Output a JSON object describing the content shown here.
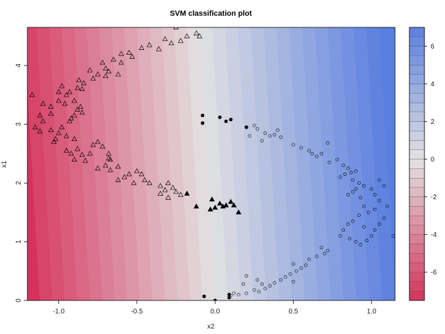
{
  "chart_data": {
    "type": "scatter",
    "title": "SVM classification plot",
    "xlabel": "x2",
    "ylabel": "x1",
    "xlim": [
      -1.2,
      1.15
    ],
    "ylim": [
      0,
      4.65
    ],
    "x_ticks": [
      "-1.0",
      "-0.5",
      "0.0",
      "0.5",
      "1.0"
    ],
    "y_ticks": [
      "0",
      "1",
      "2",
      "3",
      "4"
    ],
    "decision_surface": {
      "levels": [
        -7,
        -6.5,
        -6,
        -5.5,
        -5,
        -4.5,
        -4,
        -3.5,
        -3,
        -2.5,
        -2,
        -1.5,
        -1,
        -0.5,
        0,
        0.5,
        1,
        1.5,
        2,
        2.5,
        3,
        3.5,
        4,
        4.5,
        5,
        5.5,
        6,
        6.5,
        7
      ],
      "zero_line": [
        [
          0.0,
          0.0
        ],
        [
          -0.1,
          4.65
        ]
      ],
      "range": [
        -7.5,
        7
      ]
    },
    "colorbar": {
      "ticks": [
        "-6",
        "-4",
        "-2",
        "0",
        "2",
        "4",
        "6"
      ],
      "range": [
        -7.5,
        7
      ],
      "low_color": "#d6335c",
      "mid_color": "#e2e2e2",
      "high_color": "#5b7fe0"
    },
    "series": [
      {
        "marker": "triangle",
        "support_vector": false,
        "points": [
          [
            -0.25,
            4.65
          ],
          [
            -0.18,
            4.5
          ],
          [
            -0.12,
            4.55
          ],
          [
            -0.1,
            4.5
          ],
          [
            -0.32,
            4.45
          ],
          [
            -0.22,
            4.42
          ],
          [
            -0.28,
            4.38
          ],
          [
            -0.42,
            4.35
          ],
          [
            -0.36,
            4.28
          ],
          [
            -0.47,
            4.3
          ],
          [
            -0.55,
            4.22
          ],
          [
            -0.6,
            4.2
          ],
          [
            -0.53,
            4.15
          ],
          [
            -0.6,
            4.05
          ],
          [
            -0.65,
            4.1
          ],
          [
            -0.72,
            4.05
          ],
          [
            -0.7,
            3.95
          ],
          [
            -0.75,
            3.85
          ],
          [
            -0.8,
            3.92
          ],
          [
            -0.68,
            3.9
          ],
          [
            -0.62,
            3.85
          ],
          [
            -0.7,
            3.82
          ],
          [
            -0.78,
            3.78
          ],
          [
            -0.87,
            3.75
          ],
          [
            -0.85,
            3.6
          ],
          [
            -0.93,
            3.55
          ],
          [
            -0.98,
            3.65
          ],
          [
            -1.0,
            3.55
          ],
          [
            -0.95,
            3.5
          ],
          [
            -0.88,
            3.62
          ],
          [
            -0.84,
            3.7
          ],
          [
            -0.9,
            3.4
          ],
          [
            -0.96,
            3.35
          ],
          [
            -1.0,
            3.4
          ],
          [
            -1.05,
            3.3
          ],
          [
            -1.1,
            3.35
          ],
          [
            -1.17,
            3.5
          ],
          [
            -0.85,
            3.2
          ],
          [
            -0.9,
            3.15
          ],
          [
            -0.92,
            3.1
          ],
          [
            -0.88,
            3.25
          ],
          [
            -1.05,
            3.18
          ],
          [
            -1.12,
            3.15
          ],
          [
            -1.1,
            3.05
          ],
          [
            -1.15,
            2.95
          ],
          [
            -1.12,
            2.88
          ],
          [
            -1.05,
            2.9
          ],
          [
            -0.98,
            2.95
          ],
          [
            -1.0,
            2.85
          ],
          [
            -0.95,
            2.8
          ],
          [
            -0.9,
            2.75
          ],
          [
            -1.02,
            2.75
          ],
          [
            -1.03,
            2.7
          ],
          [
            -0.93,
            3.05
          ],
          [
            -0.86,
            3.3
          ],
          [
            -0.75,
            2.7
          ],
          [
            -0.72,
            2.62
          ],
          [
            -0.78,
            2.65
          ],
          [
            -0.88,
            2.58
          ],
          [
            -0.85,
            2.48
          ],
          [
            -0.8,
            2.5
          ],
          [
            -0.83,
            2.38
          ],
          [
            -0.9,
            2.4
          ],
          [
            -0.92,
            2.5
          ],
          [
            -0.95,
            2.55
          ],
          [
            -0.68,
            2.5
          ],
          [
            -0.67,
            2.4
          ],
          [
            -0.7,
            2.3
          ],
          [
            -0.75,
            2.25
          ],
          [
            -0.67,
            2.22
          ],
          [
            -0.62,
            2.28
          ],
          [
            -0.55,
            2.15
          ],
          [
            -0.62,
            2.05
          ],
          [
            -0.58,
            2.1
          ],
          [
            -0.5,
            2.2
          ],
          [
            -0.45,
            2.05
          ],
          [
            -0.47,
            2.15
          ],
          [
            -0.52,
            2.0
          ],
          [
            -0.42,
            2.0
          ],
          [
            -0.35,
            1.95
          ],
          [
            -0.3,
            2.0
          ],
          [
            -0.32,
            1.88
          ],
          [
            -0.35,
            1.82
          ],
          [
            -0.3,
            1.75
          ],
          [
            -0.25,
            1.85
          ],
          [
            -0.22,
            1.8
          ],
          [
            -0.27,
            1.92
          ],
          [
            -0.68,
            2.42
          ]
        ]
      },
      {
        "marker": "triangle",
        "support_vector": true,
        "points": [
          [
            -0.18,
            1.82
          ],
          [
            -0.12,
            1.6
          ],
          [
            -0.02,
            1.72
          ],
          [
            0.0,
            1.58
          ],
          [
            -0.03,
            1.55
          ],
          [
            0.05,
            1.6
          ],
          [
            0.07,
            1.62
          ],
          [
            0.03,
            1.65
          ],
          [
            0.1,
            1.68
          ],
          [
            0.12,
            1.62
          ],
          [
            0.15,
            1.5
          ]
        ]
      },
      {
        "marker": "circle",
        "support_vector": true,
        "points": [
          [
            -0.08,
            3.15
          ],
          [
            -0.08,
            3.02
          ],
          [
            0.03,
            3.12
          ],
          [
            0.07,
            3.05
          ],
          [
            0.1,
            3.08
          ],
          [
            0.2,
            2.95
          ],
          [
            -0.07,
            0.07
          ],
          [
            0.0,
            0.0
          ],
          [
            0.09,
            0.05
          ],
          [
            0.09,
            0.1
          ]
        ]
      },
      {
        "marker": "circle",
        "support_vector": false,
        "points": [
          [
            0.25,
            2.98
          ],
          [
            0.27,
            2.92
          ],
          [
            0.32,
            2.85
          ],
          [
            0.35,
            2.8
          ],
          [
            0.3,
            2.72
          ],
          [
            0.38,
            2.82
          ],
          [
            0.4,
            2.9
          ],
          [
            0.42,
            2.78
          ],
          [
            0.22,
            2.8
          ],
          [
            0.5,
            2.65
          ],
          [
            0.55,
            2.6
          ],
          [
            0.6,
            2.55
          ],
          [
            0.62,
            2.5
          ],
          [
            0.65,
            2.45
          ],
          [
            0.68,
            2.5
          ],
          [
            0.72,
            2.68
          ],
          [
            0.73,
            2.35
          ],
          [
            0.78,
            2.4
          ],
          [
            0.82,
            2.3
          ],
          [
            0.85,
            2.25
          ],
          [
            0.87,
            2.18
          ],
          [
            0.9,
            2.2
          ],
          [
            0.83,
            2.15
          ],
          [
            0.88,
            2.05
          ],
          [
            0.8,
            2.1
          ],
          [
            0.92,
            2.0
          ],
          [
            0.95,
            1.95
          ],
          [
            0.9,
            1.9
          ],
          [
            0.88,
            1.85
          ],
          [
            0.85,
            1.8
          ],
          [
            0.93,
            1.75
          ],
          [
            1.0,
            1.9
          ],
          [
            1.02,
            1.8
          ],
          [
            1.05,
            2.05
          ],
          [
            1.08,
            1.95
          ],
          [
            1.05,
            1.7
          ],
          [
            1.1,
            1.6
          ],
          [
            1.02,
            1.55
          ],
          [
            0.98,
            1.5
          ],
          [
            0.95,
            1.6
          ],
          [
            0.92,
            1.45
          ],
          [
            0.88,
            1.35
          ],
          [
            0.85,
            1.3
          ],
          [
            0.82,
            1.2
          ],
          [
            0.8,
            1.1
          ],
          [
            0.86,
            1.05
          ],
          [
            0.9,
            1.0
          ],
          [
            0.93,
            0.95
          ],
          [
            0.97,
            1.02
          ],
          [
            1.0,
            1.1
          ],
          [
            1.02,
            1.2
          ],
          [
            1.05,
            1.3
          ],
          [
            1.08,
            1.4
          ],
          [
            0.95,
            1.25
          ],
          [
            1.14,
            1.1
          ],
          [
            0.68,
            0.9
          ],
          [
            0.7,
            0.8
          ],
          [
            0.72,
            0.85
          ],
          [
            0.65,
            0.75
          ],
          [
            0.6,
            0.7
          ],
          [
            0.58,
            0.6
          ],
          [
            0.55,
            0.55
          ],
          [
            0.5,
            0.62
          ],
          [
            0.52,
            0.5
          ],
          [
            0.48,
            0.45
          ],
          [
            0.45,
            0.4
          ],
          [
            0.5,
            0.32
          ],
          [
            0.42,
            0.35
          ],
          [
            0.38,
            0.3
          ],
          [
            0.35,
            0.25
          ],
          [
            0.3,
            0.28
          ],
          [
            0.32,
            0.2
          ],
          [
            0.28,
            0.15
          ],
          [
            0.25,
            0.18
          ],
          [
            0.2,
            0.12
          ],
          [
            0.15,
            0.1
          ],
          [
            0.12,
            0.12
          ],
          [
            0.1,
            0.08
          ],
          [
            0.18,
            0.28
          ],
          [
            0.2,
            0.42
          ],
          [
            0.27,
            0.35
          ]
        ]
      }
    ]
  }
}
